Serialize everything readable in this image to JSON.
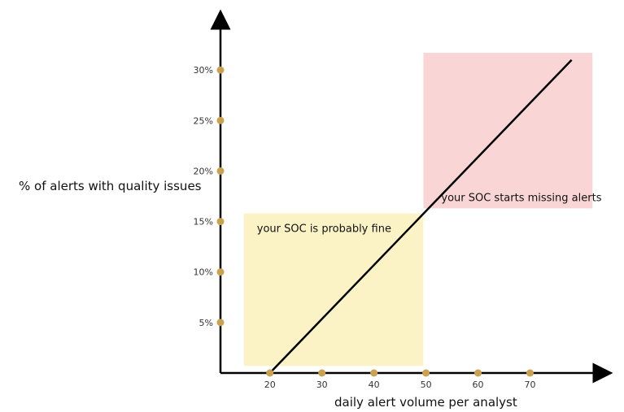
{
  "chart_data": {
    "type": "line",
    "xlabel": "daily alert volume per analyst",
    "ylabel": "% of alerts with quality issues",
    "x_ticks": [
      20,
      30,
      40,
      50,
      60,
      70
    ],
    "x_tick_labels": [
      "20",
      "30",
      "40",
      "50",
      "60",
      "70"
    ],
    "y_ticks": [
      5,
      10,
      15,
      20,
      25,
      30
    ],
    "y_tick_labels": [
      "5%",
      "10%",
      "15%",
      "20%",
      "25%",
      "30%"
    ],
    "xlim": [
      10.5,
      84
    ],
    "ylim": [
      0,
      35
    ],
    "series": [
      {
        "x": [
          20,
          78
        ],
        "y": [
          0,
          31
        ]
      }
    ],
    "regions": [
      {
        "label": "your SOC is probably fine",
        "x_range": [
          15,
          49.5
        ],
        "y_range": [
          0.7,
          15.8
        ],
        "color": "#fbf3c6"
      },
      {
        "label": "your SOC starts missing alerts",
        "x_range": [
          49.5,
          82
        ],
        "y_range": [
          16.3,
          31.7
        ],
        "color": "#f9d6d5"
      }
    ],
    "line_color": "#000000",
    "marker_color": "#c9a14f",
    "grid": false
  }
}
